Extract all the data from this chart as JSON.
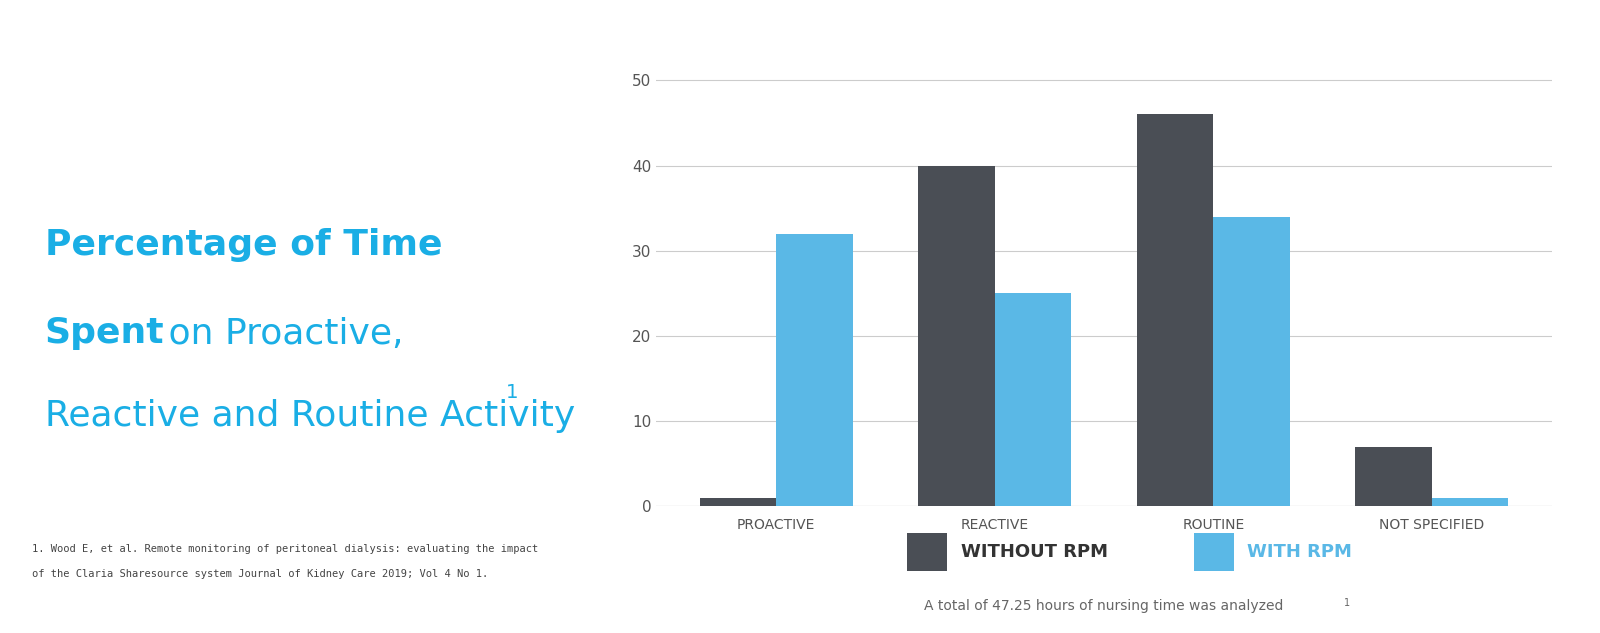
{
  "categories": [
    "PROACTIVE",
    "REACTIVE",
    "ROUTINE",
    "NOT SPECIFIED"
  ],
  "without_rpm": [
    1,
    40,
    46,
    7
  ],
  "with_rpm": [
    32,
    25,
    34,
    1
  ],
  "without_rpm_color": "#4a4e55",
  "with_rpm_color": "#5ab8e6",
  "ylim": [
    0,
    52
  ],
  "yticks": [
    0,
    10,
    20,
    30,
    40,
    50
  ],
  "bar_width": 0.35,
  "background_color": "#ffffff",
  "grid_color": "#cccccc",
  "title_color": "#1aaee5",
  "legend_without_label": "WITHOUT RPM",
  "legend_with_label": "WITH RPM",
  "legend_without_color": "#4a4e55",
  "legend_with_color": "#5ab8e6",
  "footnote_line1": "1. Wood E, et al. Remote monitoring of peritoneal dialysis: evaluating the impact",
  "footnote_line2": "of the Claria Sharesource system Journal of Kidney Care 2019; Vol 4 No 1.",
  "footer_note": "A total of 47.25 hours of nursing time was analyzed",
  "footer_color": "#666666",
  "xtick_color": "#555555",
  "ytick_color": "#555555"
}
